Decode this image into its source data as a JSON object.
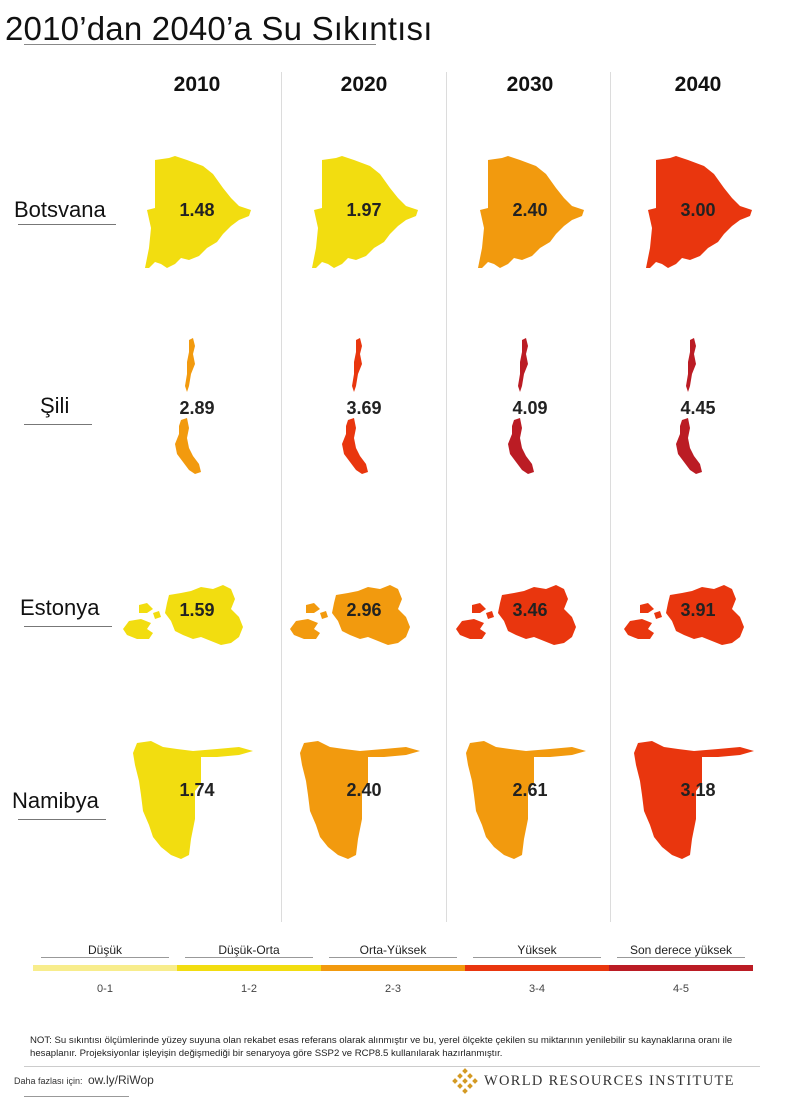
{
  "title": "2010’dan 2040’a Su Sıkıntısı",
  "chart_data": {
    "type": "table",
    "columns": [
      "2010",
      "2020",
      "2030",
      "2040"
    ],
    "rows": [
      {
        "country": "Botsvana",
        "values": [
          1.48,
          1.97,
          2.4,
          3.0
        ],
        "labels": [
          "1.48",
          "1.97",
          "2.40",
          "3.00"
        ]
      },
      {
        "country": "Şili",
        "values": [
          2.89,
          3.69,
          4.09,
          4.45
        ],
        "labels": [
          "2.89",
          "3.69",
          "4.09",
          "4.45"
        ]
      },
      {
        "country": "Estonya",
        "values": [
          1.59,
          2.96,
          3.46,
          3.91
        ],
        "labels": [
          "1.59",
          "2.96",
          "3.46",
          "3.91"
        ]
      },
      {
        "country": "Namibya",
        "values": [
          1.74,
          2.4,
          2.61,
          3.18
        ],
        "labels": [
          "1.74",
          "2.40",
          "2.61",
          "3.18"
        ]
      }
    ],
    "legend": [
      {
        "label": "Düşük",
        "range": "0-1",
        "min": 0,
        "max": 1,
        "color": "#f8ed8c"
      },
      {
        "label": "Düşük-Orta",
        "range": "1-2",
        "min": 1,
        "max": 2,
        "color": "#f2dd10"
      },
      {
        "label": "Orta-Yüksek",
        "range": "2-3",
        "min": 2,
        "max": 3,
        "color": "#f29a0e"
      },
      {
        "label": "Yüksek",
        "range": "3-4",
        "min": 3,
        "max": 4,
        "color": "#e9360e"
      },
      {
        "label": "Son derece yüksek",
        "range": "4-5",
        "min": 4,
        "max": 5,
        "color": "#bb1c24"
      }
    ]
  },
  "note": "NOT: Su sıkıntısı ölçümlerinde yüzey suyuna olan rekabet esas referans olarak alınmıştır ve bu, yerel ölçekte çekilen su miktarının yenilebilir su kaynaklarına oranı ile hesaplanır. Projeksiyonlar işleyişin değişmediği bir senaryoya göre SSP2 ve RCP8.5 kullanılarak hazırlanmıştır.",
  "more_label": "Daha fazlası için:",
  "more_link": "ow.ly/RiWop",
  "org": "WORLD RESOURCES INSTITUTE",
  "colors": {
    "gold": "#d49a24"
  }
}
